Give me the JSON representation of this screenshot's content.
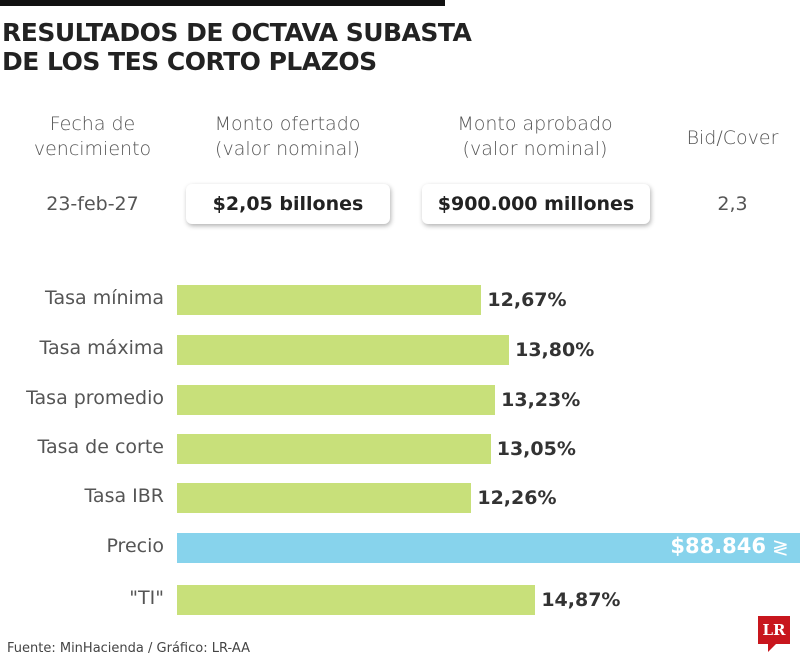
{
  "title_line1": "RESULTADOS DE OCTAVA SUBASTA",
  "title_line2": "DE LOS TES CORTO PLAZOS",
  "summary": {
    "headers": [
      [
        "Fecha de",
        "vencimiento"
      ],
      [
        "Monto ofertado",
        "(valor nominal)"
      ],
      [
        "Monto aprobado",
        "(valor nominal)"
      ],
      [
        "Bid/Cover",
        ""
      ]
    ],
    "values": [
      "23-feb-27",
      "$2,05 billones",
      "$900.000 millones",
      "2,3"
    ]
  },
  "chart_data": {
    "type": "bar",
    "orientation": "horizontal",
    "categories": [
      "Tasa mínima",
      "Tasa máxima",
      "Tasa promedio",
      "Tasa de corte",
      "Tasa IBR",
      "Precio",
      "\"TI\""
    ],
    "values": [
      12.67,
      13.8,
      13.23,
      13.05,
      12.26,
      88846,
      14.87
    ],
    "value_labels": [
      "12,67%",
      "13,80%",
      "13,23%",
      "13,05%",
      "12,26%",
      "$88.846",
      "14,87%"
    ],
    "colors": {
      "rate": "#c8e07a",
      "price": "#87d3ec"
    },
    "price_bar_truncated": true
  },
  "source": "Fuente: MinHacienda / Gráfico: LR-AA",
  "logo": "LR"
}
